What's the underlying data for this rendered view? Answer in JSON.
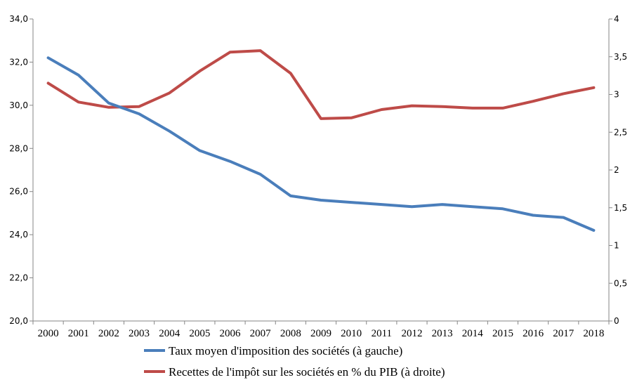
{
  "chart_data": {
    "type": "line",
    "title": "",
    "x": [
      "2000",
      "2001",
      "2002",
      "2003",
      "2004",
      "2005",
      "2006",
      "2007",
      "2008",
      "2009",
      "2010",
      "2011",
      "2012",
      "2013",
      "2014",
      "2015",
      "2016",
      "2017",
      "2018"
    ],
    "y_left": {
      "range": [
        20,
        34
      ],
      "ticks": [
        "20,0",
        "22,0",
        "24,0",
        "26,0",
        "28,0",
        "30,0",
        "32,0",
        "34,0"
      ]
    },
    "y_right": {
      "range": [
        0,
        4
      ],
      "ticks": [
        "0",
        "0,5",
        "1",
        "1,5",
        "2",
        "2,5",
        "3",
        "3,5",
        "4"
      ]
    },
    "grid": false,
    "legend_position": "bottom",
    "series": [
      {
        "name": "Taux moyen d'imposition des sociétés (à gauche)",
        "axis": "left",
        "color": "#4a7ebb",
        "values": [
          32.2,
          31.4,
          30.1,
          29.6,
          28.8,
          27.9,
          27.4,
          26.8,
          25.8,
          25.6,
          25.5,
          25.4,
          25.3,
          25.4,
          25.3,
          25.2,
          24.9,
          24.8,
          24.2
        ]
      },
      {
        "name": "Recettes de l'impôt sur les sociétés en % du PIB (à droite)",
        "axis": "right",
        "color": "#be4b48",
        "values": [
          3.15,
          2.9,
          2.83,
          2.84,
          3.02,
          3.31,
          3.56,
          3.58,
          3.28,
          2.68,
          2.69,
          2.8,
          2.85,
          2.84,
          2.82,
          2.82,
          2.91,
          3.01,
          3.09
        ]
      }
    ]
  }
}
